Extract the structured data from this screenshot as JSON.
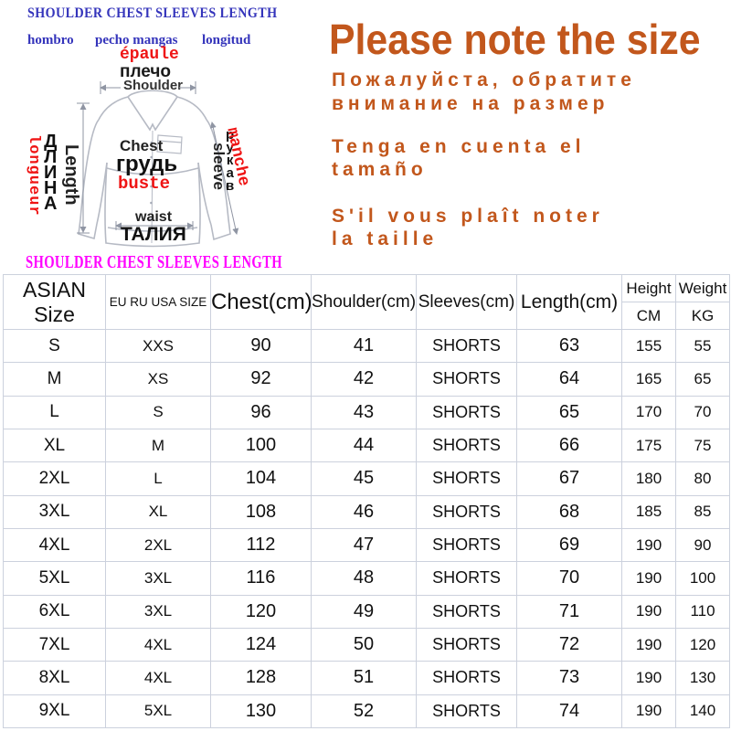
{
  "colors": {
    "accent_orange": "#c2571c",
    "label_blue": "#3434bb",
    "label_red": "#ef1414",
    "label_magenta": "#ff00ff",
    "table_red": "#ef0000",
    "grid_line": "#ccd1dd",
    "shirt_outline": "#b6bac4"
  },
  "diagram": {
    "top_labels_en": "SHOULDER CHEST SLEEVES LENGTH",
    "top_labels_es": [
      "hombro",
      "pecho mangas",
      "longitud"
    ],
    "shoulder_fr": "épaule",
    "shoulder_ru": "плечо",
    "shoulder_en": "Shoulder",
    "length_fr": "longueur",
    "length_ru": "ДЛИНА",
    "length_en": "Length",
    "chest_en": "Chest",
    "chest_ru": "грудь",
    "chest_fr": "buste",
    "waist_en": "waist",
    "waist_ru": "ТАЛИЯ",
    "sleeve_en": "sleeve",
    "sleeve_ru": "рукав",
    "sleeve_fr": "manche",
    "bottom_labels": "SHOULDER CHEST SLEEVES LENGTH"
  },
  "notice": {
    "title": "Please note the size",
    "line_ru": [
      "Пожалуйста, обратите",
      "внимание на размер"
    ],
    "line_es": [
      "Tenga en cuenta el",
      "tamaño"
    ],
    "line_fr": [
      "S'il vous plaît noter",
      "la taille"
    ]
  },
  "size_table": {
    "headers": {
      "asian": "ASIAN Size",
      "eu": "EU RU USA SIZE",
      "chest": "Chest(cm)",
      "shoulder": "Shoulder(cm)",
      "sleeves": "Sleeves(cm)",
      "length": "Length(cm)",
      "height": "Height",
      "height_unit": "CM",
      "weight": "Weight",
      "weight_unit": "KG"
    },
    "columns": [
      {
        "key": "asian",
        "red": false
      },
      {
        "key": "eu",
        "red": true
      },
      {
        "key": "chest",
        "red": false
      },
      {
        "key": "shoulder",
        "red": false
      },
      {
        "key": "sleeves",
        "red": false
      },
      {
        "key": "length",
        "red": false
      },
      {
        "key": "height",
        "red": true
      },
      {
        "key": "weight",
        "red": true
      }
    ],
    "rows": [
      {
        "asian": "S",
        "eu": "XXS",
        "chest": "90",
        "shoulder": "41",
        "sleeves": "SHORTS",
        "length": "63",
        "height": "155",
        "weight": "55"
      },
      {
        "asian": "M",
        "eu": "XS",
        "chest": "92",
        "shoulder": "42",
        "sleeves": "SHORTS",
        "length": "64",
        "height": "165",
        "weight": "65"
      },
      {
        "asian": "L",
        "eu": "S",
        "chest": "96",
        "shoulder": "43",
        "sleeves": "SHORTS",
        "length": "65",
        "height": "170",
        "weight": "70"
      },
      {
        "asian": "XL",
        "eu": "M",
        "chest": "100",
        "shoulder": "44",
        "sleeves": "SHORTS",
        "length": "66",
        "height": "175",
        "weight": "75"
      },
      {
        "asian": "2XL",
        "eu": "L",
        "chest": "104",
        "shoulder": "45",
        "sleeves": "SHORTS",
        "length": "67",
        "height": "180",
        "weight": "80"
      },
      {
        "asian": "3XL",
        "eu": "XL",
        "chest": "108",
        "shoulder": "46",
        "sleeves": "SHORTS",
        "length": "68",
        "height": "185",
        "weight": "85"
      },
      {
        "asian": "4XL",
        "eu": "2XL",
        "chest": "112",
        "shoulder": "47",
        "sleeves": "SHORTS",
        "length": "69",
        "height": "190",
        "weight": "90"
      },
      {
        "asian": "5XL",
        "eu": "3XL",
        "chest": "116",
        "shoulder": "48",
        "sleeves": "SHORTS",
        "length": "70",
        "height": "190",
        "weight": "100"
      },
      {
        "asian": "6XL",
        "eu": "3XL",
        "chest": "120",
        "shoulder": "49",
        "sleeves": "SHORTS",
        "length": "71",
        "height": "190",
        "weight": "110"
      },
      {
        "asian": "7XL",
        "eu": "4XL",
        "chest": "124",
        "shoulder": "50",
        "sleeves": "SHORTS",
        "length": "72",
        "height": "190",
        "weight": "120"
      },
      {
        "asian": "8XL",
        "eu": "4XL",
        "chest": "128",
        "shoulder": "51",
        "sleeves": "SHORTS",
        "length": "73",
        "height": "190",
        "weight": "130"
      },
      {
        "asian": "9XL",
        "eu": "5XL",
        "chest": "130",
        "shoulder": "52",
        "sleeves": "SHORTS",
        "length": "74",
        "height": "190",
        "weight": "140"
      }
    ]
  }
}
